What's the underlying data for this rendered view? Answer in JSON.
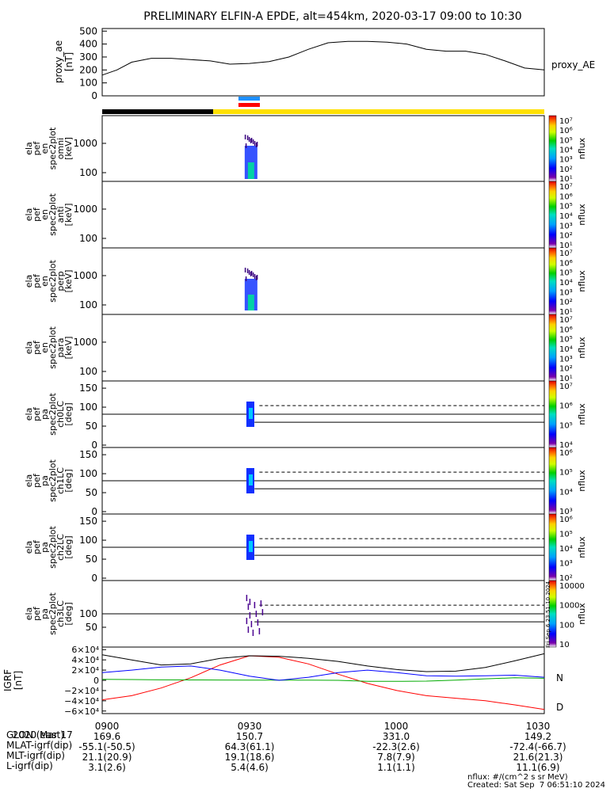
{
  "title": "PRELIMINARY ELFIN-A EPDE, alt=454km, 2020-03-17 09:00 to 10:30",
  "colors": {
    "ae_line": "#000000",
    "bar_night": "#000000",
    "bar_day": "#ffe000",
    "science_blue": "#1e90ff",
    "science_red": "#ff0000",
    "bx": "#ff0000",
    "by": "#00aa00",
    "bz": "#0000ff",
    "btot": "#000000"
  },
  "chart_data": [
    {
      "type": "line",
      "panel": "proxy_ae",
      "ylabel_lines": [
        "proxy_ae",
        "[nT]"
      ],
      "legend": "proxy_AE",
      "yticks": [
        "500",
        "400",
        "300",
        "200",
        "100",
        "0"
      ],
      "ylim": [
        0,
        520
      ],
      "x_minutes": [
        0,
        3,
        6,
        10,
        14,
        18,
        22,
        26,
        30,
        34,
        38,
        42,
        46,
        50,
        54,
        58,
        62,
        66,
        70,
        74,
        78,
        82,
        86,
        90
      ],
      "values": [
        160,
        200,
        260,
        290,
        290,
        280,
        270,
        245,
        250,
        265,
        300,
        360,
        410,
        420,
        420,
        415,
        400,
        360,
        345,
        345,
        320,
        270,
        215,
        200
      ]
    },
    {
      "type": "heatmap",
      "panel": "omni",
      "ylabel_lines": [
        "ela",
        "pef",
        "en",
        "spec2plot",
        "omni",
        "[keV]"
      ],
      "yticks": [
        "1000",
        "100"
      ],
      "zlabel": "nflux",
      "zticks": [
        "10⁷",
        "10⁶",
        "10⁵",
        "10⁴",
        "10³",
        "10²",
        "10¹"
      ]
    },
    {
      "type": "heatmap",
      "panel": "anti",
      "ylabel_lines": [
        "ela",
        "pef",
        "en",
        "spec2plot",
        "anti",
        "[keV]"
      ],
      "yticks": [
        "1000",
        "100"
      ],
      "zlabel": "nflux",
      "zticks": [
        "10⁷",
        "10⁶",
        "10⁵",
        "10⁴",
        "10³",
        "10²",
        "10¹"
      ]
    },
    {
      "type": "heatmap",
      "panel": "perp",
      "ylabel_lines": [
        "ela",
        "pef",
        "en",
        "spec2plot",
        "perp",
        "[keV]"
      ],
      "yticks": [
        "1000",
        "100"
      ],
      "zlabel": "nflux",
      "zticks": [
        "10⁷",
        "10⁶",
        "10⁵",
        "10⁴",
        "10³",
        "10²",
        "10¹"
      ]
    },
    {
      "type": "heatmap",
      "panel": "para",
      "ylabel_lines": [
        "ela",
        "pef",
        "en",
        "spec2plot",
        "para",
        "[keV]"
      ],
      "yticks": [
        "1000",
        "100"
      ],
      "zlabel": "nflux",
      "zticks": [
        "10⁷",
        "10⁶",
        "10⁵",
        "10⁴",
        "10³",
        "10²",
        "10¹"
      ]
    },
    {
      "type": "heatmap",
      "panel": "ch0LC",
      "ylabel_lines": [
        "ela",
        "pef",
        "pa",
        "spec2plot",
        "ch0LC",
        "[deg]"
      ],
      "yticks": [
        "150",
        "100",
        "50",
        "0"
      ],
      "zlabel": "nflux",
      "zticks": [
        "10⁷",
        "10⁶",
        "10⁵",
        "10⁴"
      ]
    },
    {
      "type": "heatmap",
      "panel": "ch1LC",
      "ylabel_lines": [
        "ela",
        "pef",
        "pa",
        "spec2plot",
        "ch1LC",
        "[deg]"
      ],
      "yticks": [
        "150",
        "100",
        "50",
        "0"
      ],
      "zlabel": "nflux",
      "zticks": [
        "10⁶",
        "10⁵",
        "10⁴",
        "10³"
      ]
    },
    {
      "type": "heatmap",
      "panel": "ch2LC",
      "ylabel_lines": [
        "ela",
        "pef",
        "pa",
        "spec2plot",
        "ch2LC",
        "[deg]"
      ],
      "yticks": [
        "150",
        "100",
        "50",
        "0"
      ],
      "zlabel": "nflux",
      "zticks": [
        "10⁶",
        "10⁵",
        "10⁴",
        "10³",
        "10²"
      ]
    },
    {
      "type": "heatmap",
      "panel": "ch3LC",
      "ylabel_lines": [
        "ela",
        "pef",
        "pa",
        "spec2plot",
        "ch3LC",
        "[deg]"
      ],
      "yticks": [
        "100",
        "50"
      ],
      "zlabel": "nflux",
      "zticks": [
        "10000",
        "1000",
        "100",
        "10"
      ]
    },
    {
      "type": "line",
      "panel": "igrf",
      "ylabel_lines": [
        "IGRF",
        "[nT]"
      ],
      "yticks": [
        "6×10⁴",
        "4×10⁴",
        "2×10⁴",
        "0",
        "−2×10⁴",
        "−4×10⁴",
        "−6×10⁴"
      ],
      "ylim": [
        -65000,
        65000
      ],
      "x_minutes": [
        0,
        6,
        12,
        18,
        24,
        30,
        36,
        42,
        48,
        54,
        60,
        66,
        72,
        78,
        84,
        90
      ],
      "series": [
        {
          "key": "red",
          "values": [
            -38000,
            -30000,
            -15000,
            5000,
            30000,
            48000,
            45000,
            32000,
            12000,
            -6000,
            -20000,
            -30000,
            -35000,
            -40000,
            -48000,
            -57000
          ]
        },
        {
          "key": "green",
          "values": [
            2000,
            1500,
            1000,
            800,
            600,
            500,
            400,
            300,
            0,
            -2000,
            -2000,
            -1500,
            500,
            3000,
            5000,
            4000
          ]
        },
        {
          "key": "blue",
          "values": [
            15000,
            20000,
            26000,
            28000,
            20000,
            8000,
            0,
            6000,
            15000,
            20000,
            15000,
            9000,
            8000,
            9000,
            10000,
            6000
          ]
        },
        {
          "key": "black",
          "values": [
            50000,
            40000,
            30000,
            32000,
            43000,
            48000,
            47000,
            43000,
            37000,
            28000,
            21000,
            17000,
            18000,
            25000,
            38000,
            52000
          ]
        }
      ],
      "right_labels": [
        "N",
        "D"
      ]
    }
  ],
  "footer": {
    "rows": [
      [
        "2020 Mar 17",
        "0900",
        "0930",
        "1000",
        "1030"
      ],
      [
        "GLON (east)",
        "169.6",
        "150.7",
        "331.0",
        "149.2"
      ],
      [
        "MLAT-igrf(dip)",
        "-55.1(-50.5)",
        "64.3(61.1)",
        "-22.3(2.6)",
        "-72.4(-66.7)"
      ],
      [
        "MLT-igrf(dip)",
        "21.1(20.9)",
        "19.1(18.6)",
        "7.8(7.9)",
        "21.6(21.3)"
      ],
      [
        "L-igrf(dip)",
        "3.1(2.6)",
        "5.4(4.6)",
        "1.1(1.1)",
        "11.1(6.9)"
      ]
    ],
    "units_note": "nflux: #/(cm^2 s sr MeV)",
    "created": "Created: Sat Sep  7 06:51:10 2024",
    "vertical_stamp": "Fri Sep  6 23:51:10 2024"
  }
}
